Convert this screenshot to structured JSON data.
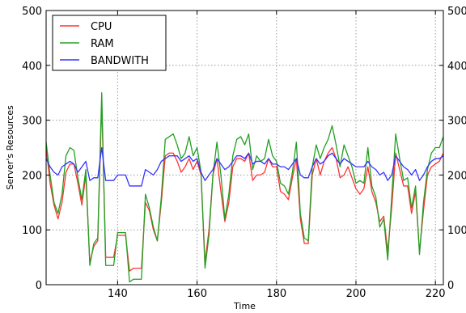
{
  "chart_data": {
    "type": "line",
    "title": "",
    "xlabel": "Time",
    "ylabel": "Server's Resources",
    "xlim": [
      122,
      222
    ],
    "ylim": [
      0,
      500
    ],
    "xticks": [
      140,
      160,
      180,
      200,
      220
    ],
    "yticks": [
      0,
      100,
      200,
      300,
      400,
      500
    ],
    "grid": true,
    "legend_position": "top-left",
    "x": [
      122,
      123,
      124,
      125,
      126,
      127,
      128,
      129,
      130,
      131,
      132,
      133,
      134,
      135,
      136,
      137,
      138,
      139,
      140,
      141,
      142,
      143,
      144,
      145,
      146,
      147,
      148,
      149,
      150,
      151,
      152,
      153,
      154,
      155,
      156,
      157,
      158,
      159,
      160,
      161,
      162,
      163,
      164,
      165,
      166,
      167,
      168,
      169,
      170,
      171,
      172,
      173,
      174,
      175,
      176,
      177,
      178,
      179,
      180,
      181,
      182,
      183,
      184,
      185,
      186,
      187,
      188,
      189,
      190,
      191,
      192,
      193,
      194,
      195,
      196,
      197,
      198,
      199,
      200,
      201,
      202,
      203,
      204,
      205,
      206,
      207,
      208,
      209,
      210,
      211,
      212,
      213,
      214,
      215,
      216,
      217,
      218,
      219,
      220,
      221,
      222
    ],
    "series": [
      {
        "name": "CPU",
        "color": "#ff3333",
        "values": [
          250,
          185,
          145,
          120,
          150,
          205,
          220,
          220,
          185,
          145,
          200,
          40,
          70,
          80,
          330,
          50,
          50,
          50,
          90,
          90,
          90,
          25,
          30,
          30,
          30,
          150,
          135,
          100,
          80,
          150,
          235,
          240,
          240,
          225,
          205,
          215,
          230,
          210,
          225,
          200,
          40,
          100,
          200,
          230,
          170,
          115,
          150,
          215,
          230,
          230,
          225,
          240,
          190,
          200,
          200,
          205,
          230,
          215,
          215,
          170,
          165,
          155,
          195,
          230,
          120,
          75,
          75,
          200,
          230,
          200,
          225,
          240,
          250,
          230,
          195,
          200,
          215,
          195,
          175,
          165,
          175,
          215,
          170,
          150,
          115,
          125,
          60,
          140,
          240,
          210,
          180,
          180,
          130,
          170,
          60,
          135,
          200,
          215,
          220,
          225,
          240
        ]
      },
      {
        "name": "RAM",
        "color": "#22a022",
        "values": [
          260,
          200,
          150,
          130,
          165,
          235,
          250,
          245,
          195,
          155,
          210,
          35,
          75,
          85,
          350,
          35,
          35,
          35,
          95,
          95,
          95,
          5,
          10,
          10,
          10,
          165,
          140,
          105,
          80,
          160,
          265,
          270,
          275,
          255,
          230,
          240,
          270,
          235,
          250,
          205,
          30,
          90,
          200,
          260,
          200,
          120,
          165,
          235,
          265,
          270,
          255,
          275,
          210,
          235,
          225,
          230,
          265,
          235,
          225,
          185,
          180,
          165,
          205,
          260,
          130,
          85,
          80,
          215,
          255,
          230,
          250,
          265,
          290,
          255,
          215,
          255,
          235,
          215,
          185,
          190,
          185,
          250,
          180,
          160,
          105,
          120,
          45,
          160,
          275,
          230,
          190,
          195,
          140,
          180,
          55,
          150,
          210,
          240,
          250,
          250,
          270
        ]
      },
      {
        "name": "BANDWITH",
        "color": "#3333ff",
        "values": [
          230,
          215,
          205,
          200,
          215,
          220,
          225,
          220,
          205,
          215,
          225,
          190,
          195,
          195,
          250,
          190,
          190,
          190,
          200,
          200,
          200,
          180,
          180,
          180,
          180,
          210,
          205,
          200,
          210,
          225,
          230,
          235,
          235,
          235,
          225,
          230,
          235,
          225,
          230,
          205,
          190,
          200,
          210,
          230,
          220,
          210,
          215,
          225,
          235,
          235,
          230,
          240,
          220,
          225,
          225,
          220,
          230,
          220,
          220,
          215,
          215,
          210,
          220,
          230,
          200,
          195,
          195,
          215,
          230,
          220,
          225,
          235,
          240,
          230,
          220,
          230,
          225,
          220,
          215,
          215,
          215,
          225,
          215,
          210,
          200,
          205,
          190,
          200,
          235,
          225,
          215,
          210,
          200,
          210,
          190,
          200,
          215,
          225,
          230,
          230,
          235
        ]
      }
    ]
  }
}
